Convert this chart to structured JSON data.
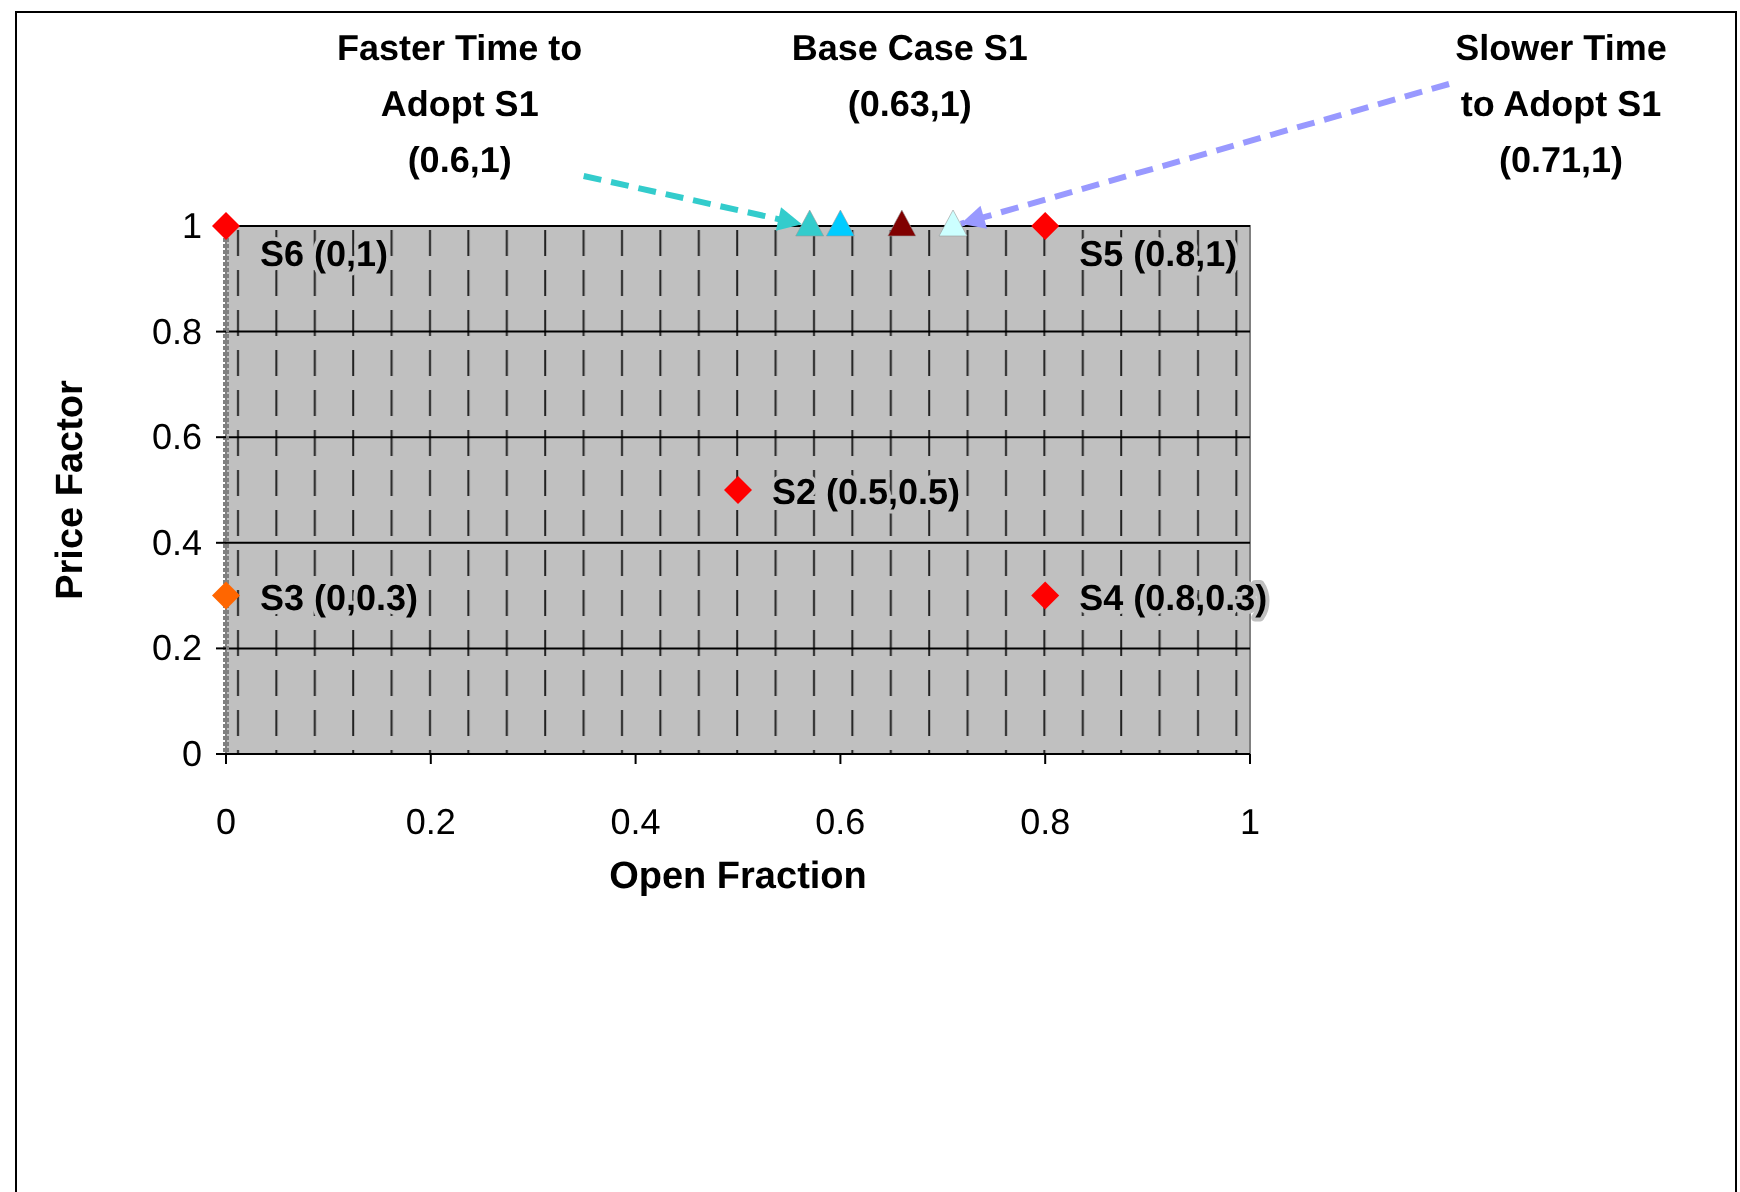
{
  "chart_data": {
    "type": "scatter",
    "xlabel": "Open Fraction",
    "ylabel": "Price Factor",
    "xlim": [
      0,
      1
    ],
    "ylim": [
      0,
      1
    ],
    "xticks": [
      0,
      0.2,
      0.4,
      0.6,
      0.8,
      1
    ],
    "yticks": [
      0,
      0.2,
      0.4,
      0.6,
      0.8,
      1
    ],
    "grid": "y",
    "legend": false,
    "series": [
      {
        "name": "S6 (0,1)",
        "color": "#ff0000",
        "marker": "diamond",
        "x": [
          0
        ],
        "values": [
          1
        ]
      },
      {
        "name": "S5 (0.8,1)",
        "color": "#ff0000",
        "marker": "diamond",
        "x": [
          0.8
        ],
        "values": [
          1
        ]
      },
      {
        "name": "S2 (0.5,0.5)",
        "color": "#ff0000",
        "marker": "diamond",
        "x": [
          0.5
        ],
        "values": [
          0.5
        ]
      },
      {
        "name": "S3 (0,0.3)",
        "color": "#ff6600",
        "marker": "diamond",
        "x": [
          0
        ],
        "values": [
          0.3
        ]
      },
      {
        "name": "S4 (0.8,0.3)",
        "color": "#ff0000",
        "marker": "diamond",
        "x": [
          0.8
        ],
        "values": [
          0.3
        ]
      },
      {
        "color": "#33cccc",
        "marker": "triangle",
        "x": [
          0.57
        ],
        "values": [
          1
        ]
      },
      {
        "color": "#00ccff",
        "marker": "triangle",
        "x": [
          0.6
        ],
        "values": [
          1
        ]
      },
      {
        "color": "#800000",
        "marker": "triangle",
        "x": [
          0.66
        ],
        "values": [
          1
        ]
      },
      {
        "color": "#ccffff",
        "marker": "triangle",
        "x": [
          0.71
        ],
        "values": [
          1
        ]
      }
    ],
    "annotations": [
      {
        "text": "Faster Time to\nAdopt S1\n(0.6,1)",
        "x": 0.57,
        "y": 1
      },
      {
        "text": "Base Case S1\n(0.63,1)",
        "x": 0.66,
        "y": 1
      },
      {
        "text": "Slower Time\nto Adopt S1\n(0.71,1)",
        "x": 0.71,
        "y": 1
      }
    ]
  }
}
